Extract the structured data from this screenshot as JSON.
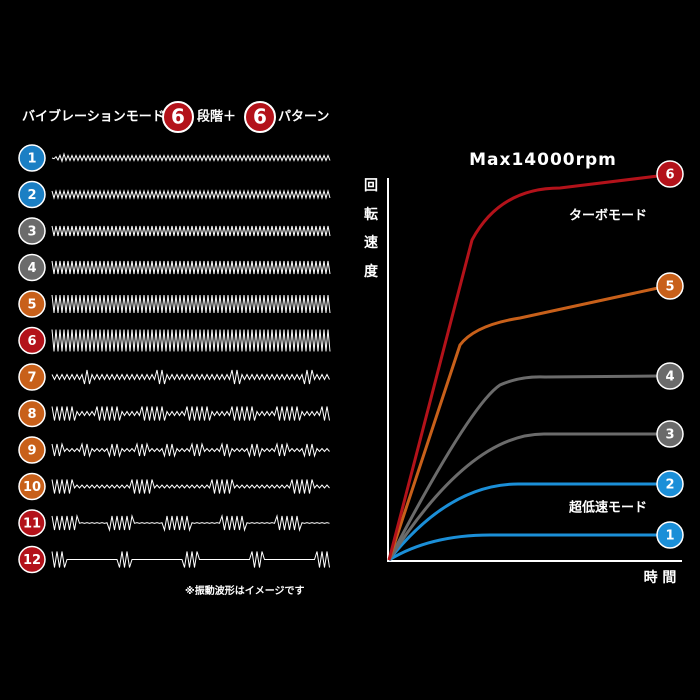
{
  "header": {
    "mode": "バイブレーションモード",
    "levels_count": "6",
    "levels": "段階＋",
    "patterns_count": "6",
    "patterns": "パターン"
  },
  "patterns": [
    {
      "label": "1",
      "color": "#1b7fc4"
    },
    {
      "label": "2",
      "color": "#1b7fc4"
    },
    {
      "label": "3",
      "color": "#6b6b6b"
    },
    {
      "label": "4",
      "color": "#6b6b6b"
    },
    {
      "label": "5",
      "color": "#c8601a"
    },
    {
      "label": "6",
      "color": "#b3121a"
    },
    {
      "label": "7",
      "color": "#c8601a"
    },
    {
      "label": "8",
      "color": "#c8601a"
    },
    {
      "label": "9",
      "color": "#c8601a"
    },
    {
      "label": "10",
      "color": "#c8601a"
    },
    {
      "label": "11",
      "color": "#b3121a"
    },
    {
      "label": "12",
      "color": "#b3121a"
    }
  ],
  "note": "※振動波形はイメージです",
  "speed_chart": {
    "title": "Max14000rpm",
    "y_label": [
      "回",
      "転",
      "速",
      "度"
    ],
    "x_label": "時 間",
    "curves": [
      {
        "label": "1",
        "color": "#1b8fd8"
      },
      {
        "label": "2",
        "color": "#1b8fd8"
      },
      {
        "label": "3",
        "color": "#6b6b6b"
      },
      {
        "label": "4",
        "color": "#6b6b6b"
      },
      {
        "label": "5",
        "color": "#c8601a"
      },
      {
        "label": "6",
        "color": "#b3121a"
      }
    ],
    "turbo_label": "ターボモード",
    "slow_label": "超低速モード"
  }
}
